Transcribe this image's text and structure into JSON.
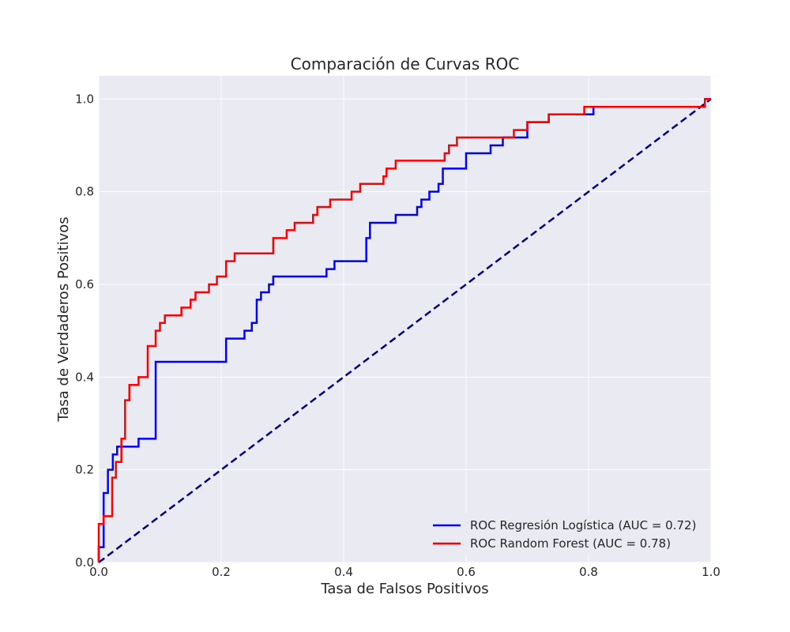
{
  "chart_data": {
    "type": "line",
    "title": "Comparación de Curvas ROC",
    "xlabel": "Tasa de Falsos Positivos",
    "ylabel": "Tasa de Verdaderos Positivos",
    "xlim": [
      0.0,
      1.0
    ],
    "ylim": [
      0.0,
      1.05
    ],
    "xticks": [
      "0.0",
      "0.2",
      "0.4",
      "0.6",
      "0.8",
      "1.0"
    ],
    "yticks": [
      "0.0",
      "0.2",
      "0.4",
      "0.6",
      "0.8",
      "1.0"
    ],
    "grid": true,
    "background": "#eaeaf2",
    "grid_color": "#ffffff",
    "legend_position": "lower-right",
    "series": [
      {
        "name": "ROC Regresión Logística (AUC = 0.72)",
        "color": "#0000ff",
        "style": "step",
        "points": [
          [
            0.0,
            0.0
          ],
          [
            0.0,
            0.033
          ],
          [
            0.008,
            0.033
          ],
          [
            0.008,
            0.15
          ],
          [
            0.015,
            0.15
          ],
          [
            0.015,
            0.2
          ],
          [
            0.023,
            0.2
          ],
          [
            0.023,
            0.233
          ],
          [
            0.03,
            0.233
          ],
          [
            0.03,
            0.25
          ],
          [
            0.065,
            0.25
          ],
          [
            0.065,
            0.267
          ],
          [
            0.093,
            0.267
          ],
          [
            0.093,
            0.433
          ],
          [
            0.208,
            0.433
          ],
          [
            0.208,
            0.483
          ],
          [
            0.238,
            0.483
          ],
          [
            0.238,
            0.5
          ],
          [
            0.25,
            0.5
          ],
          [
            0.25,
            0.517
          ],
          [
            0.258,
            0.517
          ],
          [
            0.258,
            0.567
          ],
          [
            0.265,
            0.567
          ],
          [
            0.265,
            0.583
          ],
          [
            0.278,
            0.583
          ],
          [
            0.278,
            0.6
          ],
          [
            0.285,
            0.6
          ],
          [
            0.285,
            0.617
          ],
          [
            0.372,
            0.617
          ],
          [
            0.372,
            0.633
          ],
          [
            0.385,
            0.633
          ],
          [
            0.385,
            0.65
          ],
          [
            0.437,
            0.65
          ],
          [
            0.437,
            0.7
          ],
          [
            0.443,
            0.7
          ],
          [
            0.443,
            0.733
          ],
          [
            0.485,
            0.733
          ],
          [
            0.485,
            0.75
          ],
          [
            0.52,
            0.75
          ],
          [
            0.52,
            0.767
          ],
          [
            0.527,
            0.767
          ],
          [
            0.527,
            0.783
          ],
          [
            0.54,
            0.783
          ],
          [
            0.54,
            0.8
          ],
          [
            0.555,
            0.8
          ],
          [
            0.555,
            0.817
          ],
          [
            0.562,
            0.817
          ],
          [
            0.562,
            0.85
          ],
          [
            0.6,
            0.85
          ],
          [
            0.6,
            0.883
          ],
          [
            0.64,
            0.883
          ],
          [
            0.64,
            0.9
          ],
          [
            0.66,
            0.9
          ],
          [
            0.66,
            0.917
          ],
          [
            0.7,
            0.917
          ],
          [
            0.7,
            0.95
          ],
          [
            0.735,
            0.95
          ],
          [
            0.735,
            0.967
          ],
          [
            0.808,
            0.967
          ],
          [
            0.808,
            0.983
          ],
          [
            0.99,
            0.983
          ],
          [
            0.99,
            1.0
          ],
          [
            1.0,
            1.0
          ]
        ]
      },
      {
        "name": "ROC Random Forest (AUC = 0.78)",
        "color": "#ff0000",
        "style": "step",
        "points": [
          [
            0.0,
            0.0
          ],
          [
            0.0,
            0.083
          ],
          [
            0.008,
            0.083
          ],
          [
            0.008,
            0.1
          ],
          [
            0.022,
            0.1
          ],
          [
            0.022,
            0.183
          ],
          [
            0.028,
            0.183
          ],
          [
            0.028,
            0.217
          ],
          [
            0.037,
            0.217
          ],
          [
            0.037,
            0.267
          ],
          [
            0.043,
            0.267
          ],
          [
            0.043,
            0.35
          ],
          [
            0.05,
            0.35
          ],
          [
            0.05,
            0.383
          ],
          [
            0.065,
            0.383
          ],
          [
            0.065,
            0.4
          ],
          [
            0.08,
            0.4
          ],
          [
            0.08,
            0.467
          ],
          [
            0.093,
            0.467
          ],
          [
            0.093,
            0.5
          ],
          [
            0.1,
            0.5
          ],
          [
            0.1,
            0.517
          ],
          [
            0.108,
            0.517
          ],
          [
            0.108,
            0.533
          ],
          [
            0.135,
            0.533
          ],
          [
            0.135,
            0.55
          ],
          [
            0.15,
            0.55
          ],
          [
            0.15,
            0.567
          ],
          [
            0.158,
            0.567
          ],
          [
            0.158,
            0.583
          ],
          [
            0.18,
            0.583
          ],
          [
            0.18,
            0.6
          ],
          [
            0.193,
            0.6
          ],
          [
            0.193,
            0.617
          ],
          [
            0.208,
            0.617
          ],
          [
            0.208,
            0.65
          ],
          [
            0.222,
            0.65
          ],
          [
            0.222,
            0.667
          ],
          [
            0.285,
            0.667
          ],
          [
            0.285,
            0.7
          ],
          [
            0.307,
            0.7
          ],
          [
            0.307,
            0.717
          ],
          [
            0.32,
            0.717
          ],
          [
            0.32,
            0.733
          ],
          [
            0.35,
            0.733
          ],
          [
            0.35,
            0.75
          ],
          [
            0.357,
            0.75
          ],
          [
            0.357,
            0.767
          ],
          [
            0.378,
            0.767
          ],
          [
            0.378,
            0.783
          ],
          [
            0.413,
            0.783
          ],
          [
            0.413,
            0.8
          ],
          [
            0.427,
            0.8
          ],
          [
            0.427,
            0.817
          ],
          [
            0.465,
            0.817
          ],
          [
            0.465,
            0.833
          ],
          [
            0.47,
            0.833
          ],
          [
            0.47,
            0.85
          ],
          [
            0.485,
            0.85
          ],
          [
            0.485,
            0.867
          ],
          [
            0.565,
            0.867
          ],
          [
            0.565,
            0.883
          ],
          [
            0.572,
            0.883
          ],
          [
            0.572,
            0.9
          ],
          [
            0.585,
            0.9
          ],
          [
            0.585,
            0.917
          ],
          [
            0.678,
            0.917
          ],
          [
            0.678,
            0.933
          ],
          [
            0.7,
            0.933
          ],
          [
            0.7,
            0.95
          ],
          [
            0.735,
            0.95
          ],
          [
            0.735,
            0.967
          ],
          [
            0.793,
            0.967
          ],
          [
            0.793,
            0.983
          ],
          [
            0.99,
            0.983
          ],
          [
            0.99,
            1.0
          ],
          [
            1.0,
            1.0
          ]
        ]
      }
    ],
    "reference_line": {
      "color": "#000080",
      "style": "dashed",
      "points": [
        [
          0.0,
          0.0
        ],
        [
          1.0,
          1.0
        ]
      ]
    }
  }
}
